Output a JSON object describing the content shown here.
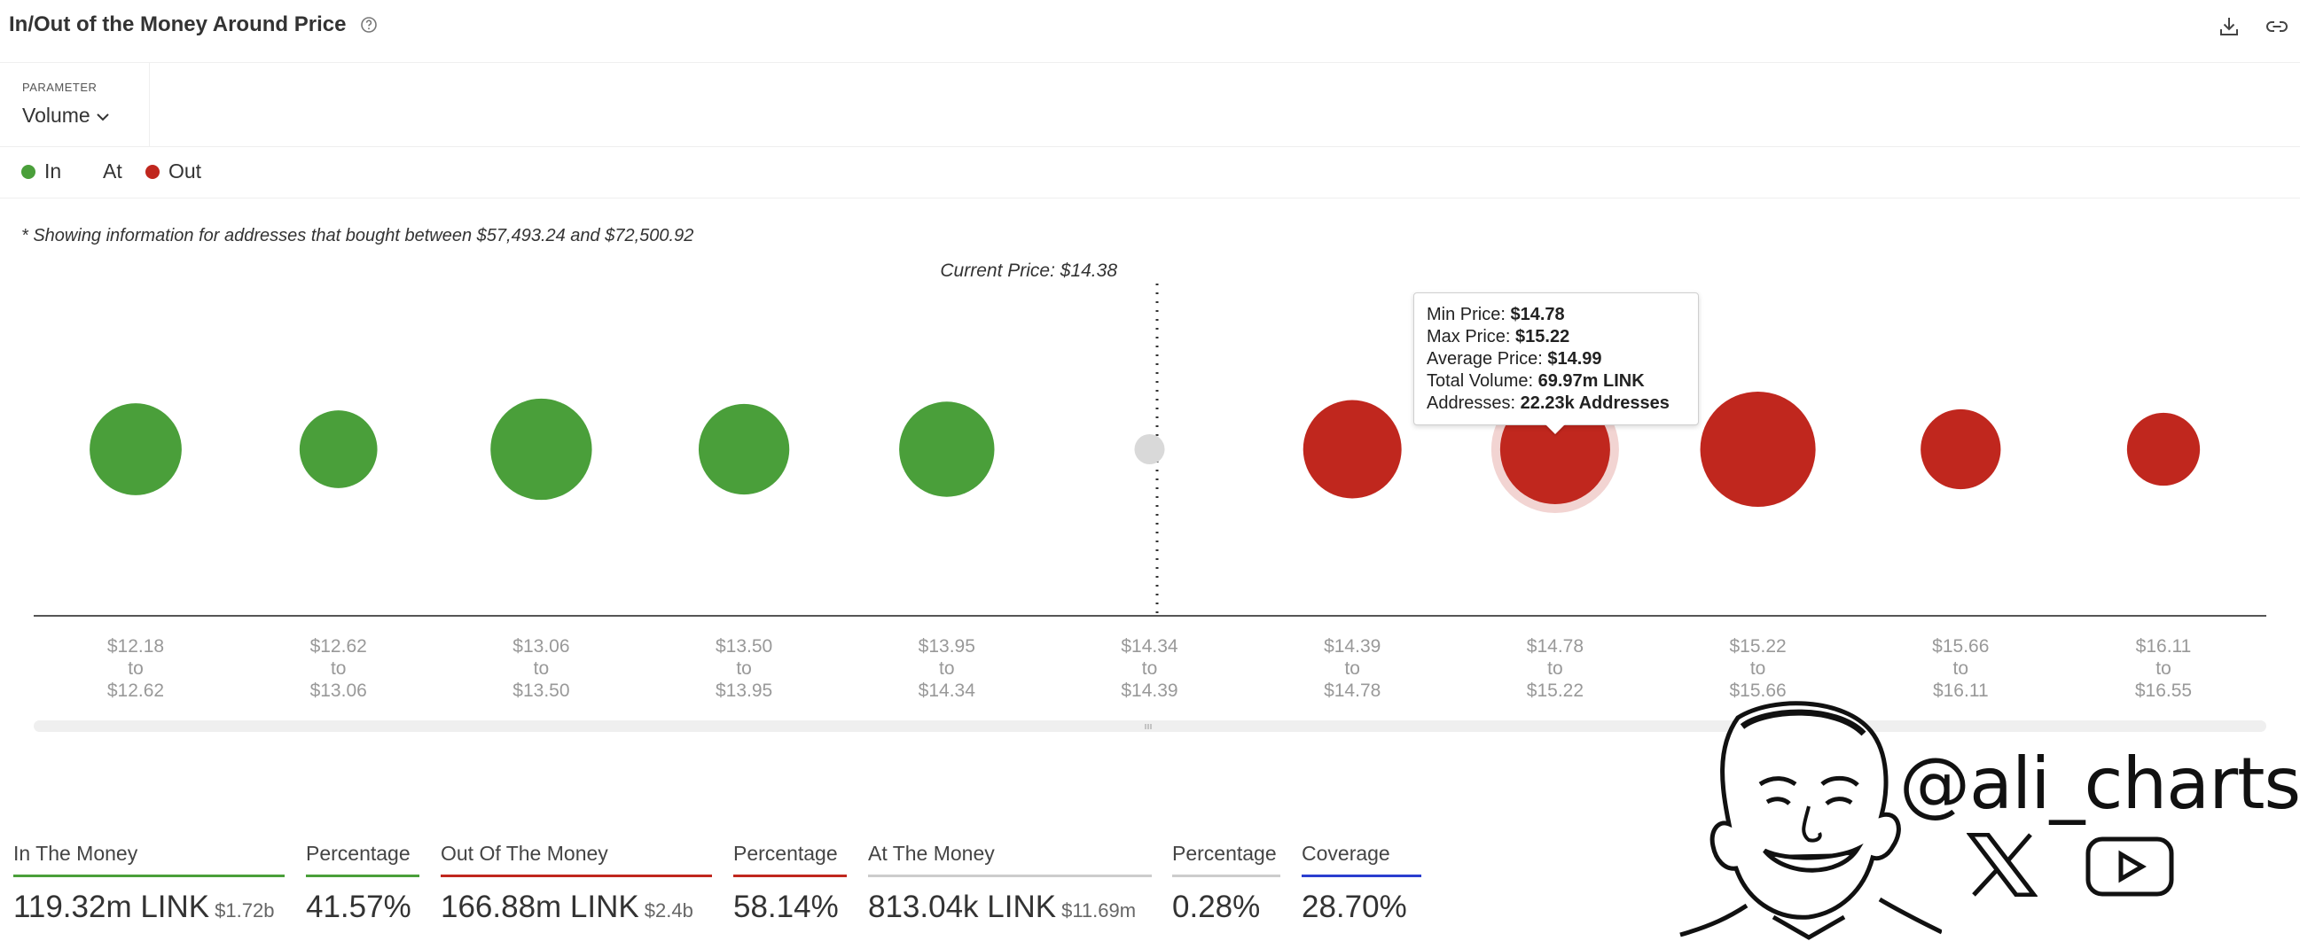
{
  "header": {
    "title": "In/Out of the Money Around Price",
    "help_icon": "question-circle-icon",
    "download_icon": "download-icon",
    "link_icon": "link-icon"
  },
  "parameter": {
    "label": "PARAMETER",
    "value": "Volume",
    "icon": "chevron-down-icon"
  },
  "legend": [
    {
      "label": "In",
      "color": "#4a9f3a"
    },
    {
      "label": "At",
      "color": null
    },
    {
      "label": "Out",
      "color": "#c0271e"
    }
  ],
  "note": "* Showing information for addresses that bought between $57,493.24 and $72,500.92",
  "current_price_label": "Current Price: $14.38",
  "chart_data": {
    "type": "scatter",
    "categories": [
      [
        "$12.18",
        "to",
        "$12.62"
      ],
      [
        "$12.62",
        "to",
        "$13.06"
      ],
      [
        "$13.06",
        "to",
        "$13.50"
      ],
      [
        "$13.50",
        "to",
        "$13.95"
      ],
      [
        "$13.95",
        "to",
        "$14.34"
      ],
      [
        "$14.34",
        "to",
        "$14.39"
      ],
      [
        "$14.39",
        "to",
        "$14.78"
      ],
      [
        "$14.78",
        "to",
        "$15.22"
      ],
      [
        "$15.22",
        "to",
        "$15.66"
      ],
      [
        "$15.66",
        "to",
        "$16.11"
      ],
      [
        "$16.11",
        "to",
        "$16.55"
      ]
    ],
    "status": [
      "in",
      "in",
      "in",
      "in",
      "in",
      "at",
      "out",
      "out",
      "out",
      "out",
      "out"
    ],
    "relative_volume": [
      0.7,
      0.5,
      0.85,
      0.68,
      0.75,
      0.1,
      0.8,
      1.0,
      1.1,
      0.53,
      0.44
    ],
    "colors": {
      "in": "#4a9f3a",
      "at": "#d9d9d9",
      "out": "#c0271e"
    },
    "highlighted_index": 7
  },
  "tooltip": {
    "min_label": "Min Price: ",
    "min_value": "$14.78",
    "max_label": "Max Price: ",
    "max_value": "$15.22",
    "avg_label": "Average Price: ",
    "avg_value": "$14.99",
    "vol_label": "Total Volume: ",
    "vol_value": "69.97m LINK",
    "addr_label": "Addresses: ",
    "addr_value": "22.23k Addresses"
  },
  "stats": {
    "in_money": {
      "label": "In The Money",
      "value": "119.32m LINK",
      "sub": "$1.72b",
      "color": "#4a9f3a"
    },
    "in_pct": {
      "label": "Percentage",
      "value": "41.57%",
      "color": "#4a9f3a"
    },
    "out_money": {
      "label": "Out Of The Money",
      "value": "166.88m LINK",
      "sub": "$2.4b",
      "color": "#c0271e"
    },
    "out_pct": {
      "label": "Percentage",
      "value": "58.14%",
      "color": "#c0271e"
    },
    "at_money": {
      "label": "At The Money",
      "value": "813.04k LINK",
      "sub": "$11.69m",
      "color": "#cccccc"
    },
    "at_pct": {
      "label": "Percentage",
      "value": "0.28%",
      "color": "#cccccc"
    },
    "coverage": {
      "label": "Coverage",
      "value": "28.70%",
      "color": "#2b3ecf"
    }
  },
  "watermark": {
    "handle": "@ali_charts",
    "x_icon": "x-logo-icon",
    "youtube_icon": "youtube-icon",
    "portrait": "cartoon-portrait-icon"
  }
}
